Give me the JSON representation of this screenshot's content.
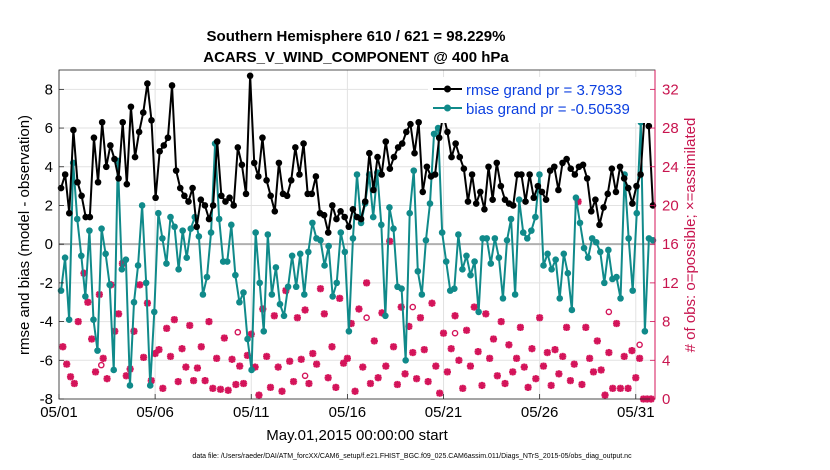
{
  "chart_data": {
    "type": "line",
    "title_lines": [
      "Southern Hemisphere 610 / 621 = 98.229%",
      "ACARS_V_WIND_COMPONENT @ 400 hPa"
    ],
    "xlabel": "May.01,2015 00:00:00 start",
    "ylabel": "rmse and bias (model - observation)",
    "y2label": "# of obs: o=possible; ×=assimilated",
    "footer": "data file: /Users/raeder/DAI/ATM_forcXX/CAM6_setup/f.e21.FHIST_BGC.f09_025.CAM6assim.011/Diags_NTrS_2015-05/obs_diag_output.nc",
    "xlim": [
      1,
      32
    ],
    "ylim": [
      -8,
      9
    ],
    "y2lim": [
      0,
      34
    ],
    "x_ticks": [
      1,
      6,
      11,
      16,
      21,
      26,
      31
    ],
    "x_tick_labels": [
      "05/01",
      "05/06",
      "05/11",
      "05/16",
      "05/21",
      "05/26",
      "05/31"
    ],
    "y_ticks": [
      -8,
      -6,
      -4,
      -2,
      0,
      2,
      4,
      6,
      8
    ],
    "y_tick_labels": [
      "-8",
      "-6",
      "-4",
      "-2",
      "0",
      "2",
      "4",
      "6",
      "8"
    ],
    "y2_ticks": [
      0,
      4,
      8,
      12,
      16,
      20,
      24,
      28,
      32
    ],
    "y2_tick_labels": [
      "0",
      "4",
      "8",
      "12",
      "16",
      "20",
      "24",
      "28",
      "32"
    ],
    "grid": true,
    "legend_position": "top-right",
    "colors": {
      "rmse": "#000000",
      "bias": "#108a8a",
      "obs": "#d4145a",
      "zero": "#b0b0b0"
    },
    "series": [
      {
        "name": "rmse grand pr = 3.7933",
        "y": [
          2.9,
          3.6,
          1.6,
          5.9,
          3.2,
          2.5,
          1.4,
          1.4,
          5.5,
          3.2,
          6.3,
          4.0,
          5.1,
          4.4,
          3.4,
          6.3,
          3.1,
          7.1,
          4.5,
          5.8,
          6.8,
          8.3,
          6.4,
          2.4,
          4.8,
          5.1,
          5.5,
          8.2,
          3.8,
          2.9,
          2.5,
          2.2,
          2.9,
          0.9,
          2.3,
          2.0,
          1.3,
          2.0,
          5.3,
          2.5,
          2.2,
          2.4,
          2.0,
          5.0,
          4.1,
          2.6,
          8.7,
          4.2,
          3.5,
          5.5,
          3.3,
          2.5,
          1.7,
          4.2,
          2.6,
          2.5,
          3.3,
          5.0,
          3.6,
          5.2,
          2.6,
          2.6,
          3.5,
          1.6,
          1.5,
          0.6,
          2.0,
          1.3,
          1.7,
          1.4,
          0.9,
          1.8,
          1.4,
          1.3,
          2.2,
          4.7,
          2.8,
          4.5,
          3.6,
          5.3,
          3.9,
          4.5,
          5.0,
          5.2,
          5.8,
          6.2,
          4.7,
          6.3,
          2.7,
          4.0,
          3.5,
          3.6,
          5.5,
          6.7,
          5.8,
          4.5,
          5.2,
          4.5,
          3.9,
          2.2,
          3.6,
          2.1,
          2.7,
          1.8,
          4.0,
          2.3,
          4.2,
          3.0,
          2.3,
          2.1,
          2.0,
          3.6,
          3.6,
          2.2,
          3.6,
          2.4,
          3.0,
          2.7,
          2.3,
          3.8,
          4.0,
          2.8,
          4.2,
          4.4,
          3.9,
          3.6,
          4.0,
          4.1,
          3.4,
          1.7,
          2.3,
          1.0,
          1.9,
          2.6,
          3.9,
          2.7,
          4.0,
          3.4,
          2.9,
          2.1,
          3.0,
          3.6,
          6.8,
          6.1,
          2.0
        ]
      },
      {
        "name": "bias grand pr = -0.50539",
        "y": [
          -2.4,
          -0.7,
          -3.9,
          4.2,
          1.3,
          -0.6,
          -2.7,
          0.7,
          -3.9,
          -5.5,
          0.8,
          -0.5,
          -2.1,
          -6.5,
          4.3,
          -1.3,
          -0.8,
          -7.3,
          -3.0,
          -1.1,
          2.0,
          -2.0,
          -7.3,
          -3.5,
          1.6,
          0.3,
          -1.0,
          1.4,
          0.9,
          -1.3,
          0.7,
          -0.7,
          0.8,
          1.4,
          0.4,
          -2.6,
          -1.7,
          0.6,
          5.2,
          1.3,
          -0.9,
          -0.9,
          1.0,
          -1.6,
          -3.0,
          -2.5,
          -4.9,
          -6.5,
          0.6,
          -2.0,
          -4.5,
          0.5,
          -2.6,
          -1.2,
          -3.1,
          -3.7,
          -2.2,
          -0.6,
          -2.2,
          -0.5,
          -2.6,
          -0.4,
          1.1,
          0.3,
          0.2,
          -1.1,
          -0.1,
          -2.7,
          -2.0,
          0.6,
          -0.4,
          -4.5,
          0.3,
          3.6,
          1.1,
          2.1,
          3.6,
          1.4,
          3.7,
          1.0,
          -3.7,
          1.9,
          0.8,
          -2.2,
          -2.3,
          -6.0,
          1.6,
          3.8,
          -1.4,
          -2.6,
          0.2,
          2.1,
          5.7,
          6.0,
          0.6,
          -0.9,
          -2.4,
          -2.3,
          0.5,
          -1.3,
          -0.6,
          -1.6,
          -0.9,
          -3.5,
          0.3,
          0.3,
          -1.0,
          0.3,
          -0.7,
          -2.8,
          0.2,
          1.3,
          -2.6,
          2.3,
          0.6,
          0.3,
          0.7,
          1.4,
          3.6,
          -1.1,
          -0.5,
          -1.3,
          -0.8,
          -2.8,
          -0.5,
          -1.5,
          -3.4,
          2.4,
          1.1,
          -0.2,
          -0.7,
          0.3,
          0.1,
          -0.4,
          -2.0,
          -0.3,
          -1.8,
          -1.7,
          -2.8,
          3.6,
          0.3,
          -2.4,
          1.6,
          6.3,
          -4.5,
          0.3,
          0.2
        ]
      }
    ],
    "obs_assimilated": [
      [
        1.2,
        5.4
      ],
      [
        1.4,
        3.6
      ],
      [
        1.6,
        2.3
      ],
      [
        1.8,
        1.6
      ],
      [
        2.0,
        8.0
      ],
      [
        2.3,
        13.0
      ],
      [
        2.5,
        10.0
      ],
      [
        2.7,
        6.2
      ],
      [
        2.9,
        2.8
      ],
      [
        3.1,
        10.8
      ],
      [
        3.3,
        4.2
      ],
      [
        3.5,
        2.1
      ],
      [
        3.7,
        11.8
      ],
      [
        3.9,
        7.0
      ],
      [
        4.1,
        8.8
      ],
      [
        4.3,
        14.0
      ],
      [
        4.5,
        2.4
      ],
      [
        4.7,
        3.1
      ],
      [
        4.9,
        7.0
      ],
      [
        5.2,
        11.8
      ],
      [
        5.4,
        4.3
      ],
      [
        5.6,
        9.9
      ],
      [
        5.8,
        1.9
      ],
      [
        6.0,
        4.7
      ],
      [
        6.2,
        5.1
      ],
      [
        6.4,
        1.1
      ],
      [
        6.6,
        7.3
      ],
      [
        6.8,
        4.4
      ],
      [
        7.0,
        8.2
      ],
      [
        7.2,
        1.8
      ],
      [
        7.4,
        5.2
      ],
      [
        7.6,
        3.3
      ],
      [
        7.8,
        7.6
      ],
      [
        8.0,
        1.9
      ],
      [
        8.2,
        3.2
      ],
      [
        8.4,
        5.4
      ],
      [
        8.6,
        1.9
      ],
      [
        8.8,
        8.0
      ],
      [
        9.0,
        1.1
      ],
      [
        9.2,
        4.2
      ],
      [
        9.4,
        1.0
      ],
      [
        9.6,
        6.3
      ],
      [
        9.8,
        0.9
      ],
      [
        10.0,
        4.1
      ],
      [
        10.2,
        1.5
      ],
      [
        10.4,
        3.4
      ],
      [
        10.6,
        1.6
      ],
      [
        10.8,
        4.5
      ],
      [
        11.0,
        6.7
      ],
      [
        11.2,
        3.3
      ],
      [
        11.4,
        0.4
      ],
      [
        11.6,
        9.3
      ],
      [
        11.8,
        4.4
      ],
      [
        12.0,
        1.2
      ],
      [
        12.2,
        8.6
      ],
      [
        12.4,
        3.3
      ],
      [
        12.6,
        0.8
      ],
      [
        12.8,
        11.2
      ],
      [
        13.0,
        3.9
      ],
      [
        13.2,
        1.8
      ],
      [
        13.4,
        8.4
      ],
      [
        13.6,
        4.1
      ],
      [
        13.8,
        9.2
      ],
      [
        14.0,
        1.6
      ],
      [
        14.2,
        4.7
      ],
      [
        14.4,
        3.6
      ],
      [
        14.6,
        11.4
      ],
      [
        14.8,
        8.8
      ],
      [
        15.0,
        2.2
      ],
      [
        15.2,
        5.4
      ],
      [
        15.4,
        1.2
      ],
      [
        15.6,
        10.4
      ],
      [
        15.8,
        3.7
      ],
      [
        16.0,
        4.2
      ],
      [
        16.2,
        7.8
      ],
      [
        16.4,
        0.8
      ],
      [
        16.6,
        9.3
      ],
      [
        16.8,
        3.3
      ],
      [
        17.0,
        12.0
      ],
      [
        17.2,
        1.6
      ],
      [
        17.4,
        6.0
      ],
      [
        17.6,
        2.2
      ],
      [
        17.8,
        8.9
      ],
      [
        18.0,
        3.4
      ],
      [
        18.2,
        16.3
      ],
      [
        18.4,
        5.4
      ],
      [
        18.6,
        1.5
      ],
      [
        18.8,
        9.5
      ],
      [
        19.0,
        2.6
      ],
      [
        19.2,
        7.5
      ],
      [
        19.4,
        4.8
      ],
      [
        19.6,
        2.1
      ],
      [
        19.8,
        8.4
      ],
      [
        20.0,
        5.1
      ],
      [
        20.2,
        1.8
      ],
      [
        20.4,
        9.9
      ],
      [
        20.6,
        3.4
      ],
      [
        20.8,
        0.6
      ],
      [
        21.0,
        6.8
      ],
      [
        21.2,
        2.8
      ],
      [
        21.4,
        5.2
      ],
      [
        21.6,
        8.6
      ],
      [
        21.8,
        4.0
      ],
      [
        22.0,
        1.1
      ],
      [
        22.2,
        7.1
      ],
      [
        22.4,
        3.4
      ],
      [
        22.6,
        9.5
      ],
      [
        22.8,
        4.9
      ],
      [
        23.0,
        1.4
      ],
      [
        23.2,
        8.8
      ],
      [
        23.4,
        4.2
      ],
      [
        23.6,
        6.2
      ],
      [
        23.8,
        2.4
      ],
      [
        24.0,
        8.0
      ],
      [
        24.2,
        1.6
      ],
      [
        24.4,
        5.6
      ],
      [
        24.6,
        2.8
      ],
      [
        24.8,
        4.2
      ],
      [
        25.0,
        7.4
      ],
      [
        25.2,
        3.3
      ],
      [
        25.4,
        1.2
      ],
      [
        25.6,
        5.2
      ],
      [
        25.8,
        2.1
      ],
      [
        26.0,
        8.4
      ],
      [
        26.2,
        3.4
      ],
      [
        26.4,
        4.8
      ],
      [
        26.6,
        1.4
      ],
      [
        26.8,
        5.1
      ],
      [
        27.0,
        2.6
      ],
      [
        27.2,
        4.4
      ],
      [
        27.4,
        7.4
      ],
      [
        27.6,
        1.9
      ],
      [
        27.8,
        3.6
      ],
      [
        28.0,
        20.4
      ],
      [
        28.2,
        1.5
      ],
      [
        28.4,
        7.4
      ],
      [
        28.6,
        4.2
      ],
      [
        28.8,
        2.8
      ],
      [
        29.0,
        6.0
      ],
      [
        29.2,
        3.0
      ],
      [
        29.4,
        0.4
      ],
      [
        29.6,
        4.8
      ],
      [
        29.8,
        1.1
      ],
      [
        30.0,
        7.8
      ],
      [
        30.2,
        1.1
      ],
      [
        30.4,
        4.4
      ],
      [
        30.6,
        1.1
      ],
      [
        30.8,
        5.0
      ],
      [
        31.0,
        2.2
      ],
      [
        31.2,
        4.2
      ],
      [
        31.4,
        0.0
      ],
      [
        31.6,
        0.0
      ],
      [
        31.8,
        0.0
      ]
    ],
    "obs_possible": [
      [
        3.2,
        3.5
      ],
      [
        10.3,
        6.9
      ],
      [
        13.8,
        2.4
      ],
      [
        17.0,
        8.4
      ],
      [
        19.4,
        9.5
      ],
      [
        21.6,
        6.8
      ],
      [
        29.6,
        9.0
      ],
      [
        31.2,
        5.6
      ]
    ]
  }
}
